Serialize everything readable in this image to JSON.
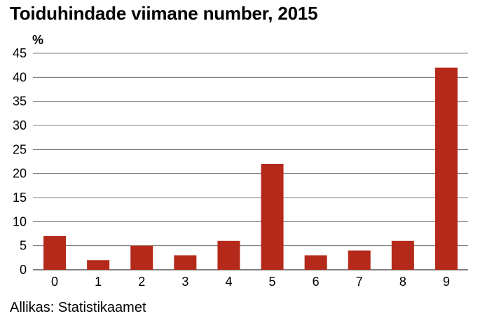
{
  "title": "Toiduhindade viimane number, 2015",
  "source": "Allikas: Statistikaamet",
  "chart_data": {
    "type": "bar",
    "title": "Toiduhindade viimane number, 2015",
    "ylabel": "%",
    "xlabel": "",
    "categories": [
      "0",
      "1",
      "2",
      "3",
      "4",
      "5",
      "6",
      "7",
      "8",
      "9"
    ],
    "values": [
      7,
      2,
      5,
      3,
      6,
      22,
      3,
      4,
      6,
      42
    ],
    "ylim": [
      0,
      45
    ],
    "yticks": [
      0,
      5,
      10,
      15,
      20,
      25,
      30,
      35,
      40,
      45
    ],
    "grid": true,
    "bar_color": "#b5291a",
    "grid_color": "#555555"
  }
}
